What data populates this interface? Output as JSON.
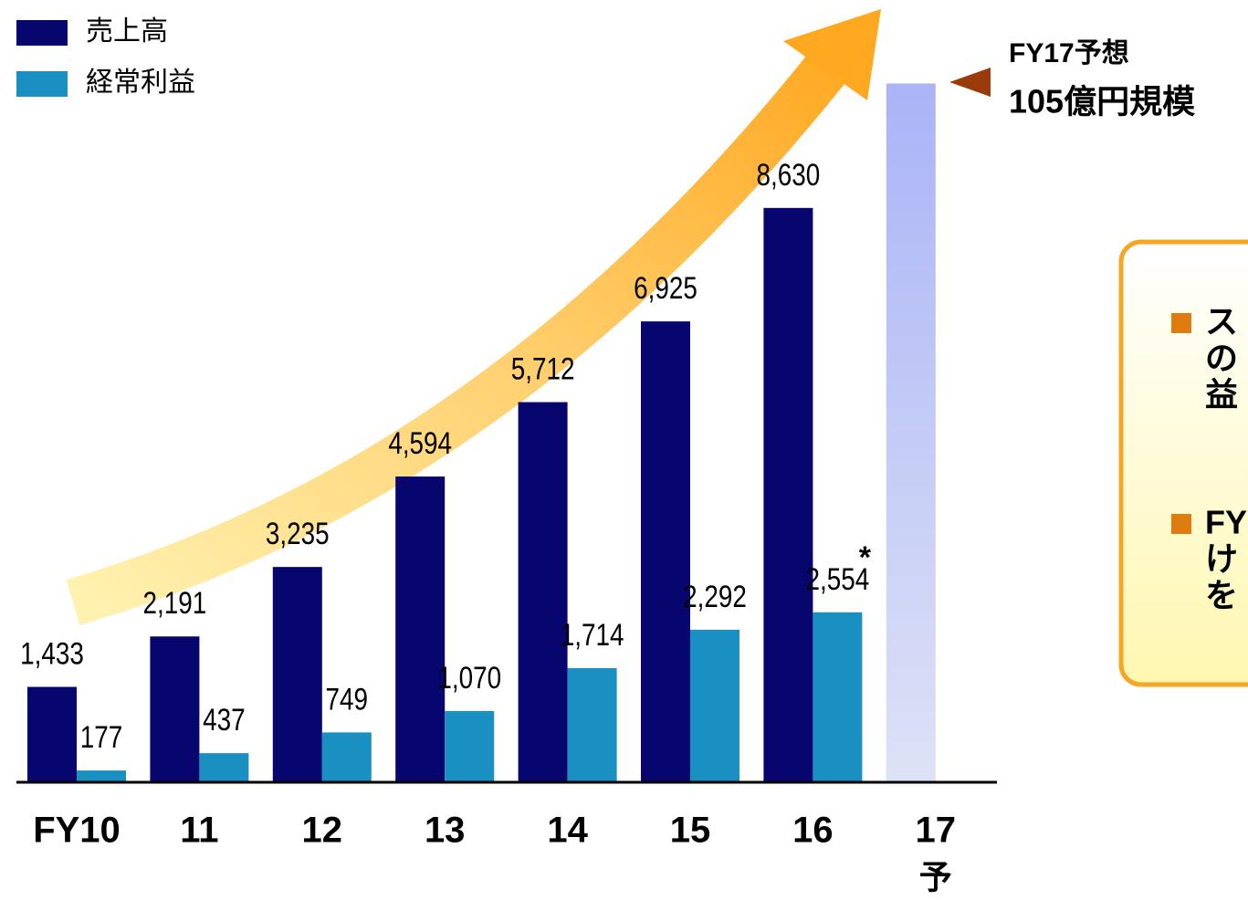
{
  "chart_data": {
    "type": "bar",
    "categories": [
      "FY10",
      "11",
      "12",
      "13",
      "14",
      "15",
      "16",
      "17"
    ],
    "forecast_mark": "予",
    "series": [
      {
        "name": "売上高",
        "color": "#06066e",
        "point_colors": [
          "#06066e",
          "#06066e",
          "#06066e",
          "#06066e",
          "#06066e",
          "#06066e",
          "#06066e",
          "#b3bcf7"
        ],
        "values": [
          1433,
          2191,
          3235,
          4594,
          5712,
          6925,
          8630,
          10500
        ],
        "value_labels": [
          "1,433",
          "2,191",
          "3,235",
          "4,594",
          "5,712",
          "6,925",
          "8,630",
          null
        ]
      },
      {
        "name": "経常利益",
        "color": "#1a8fc2",
        "values": [
          177,
          437,
          749,
          1070,
          1714,
          2292,
          2554,
          null
        ],
        "value_labels": [
          "177",
          "437",
          "749",
          "1,070",
          "1,714",
          "2,292",
          "2,554",
          null
        ]
      }
    ],
    "ylim": [
      0,
      11700
    ],
    "annotations": {
      "asterisk": "*",
      "forecast_title": "FY17予想",
      "forecast_value": "105億円規模"
    },
    "note_items": [
      [
        "ス",
        "の",
        "益"
      ],
      [
        "FY",
        "け",
        "を"
      ]
    ]
  }
}
